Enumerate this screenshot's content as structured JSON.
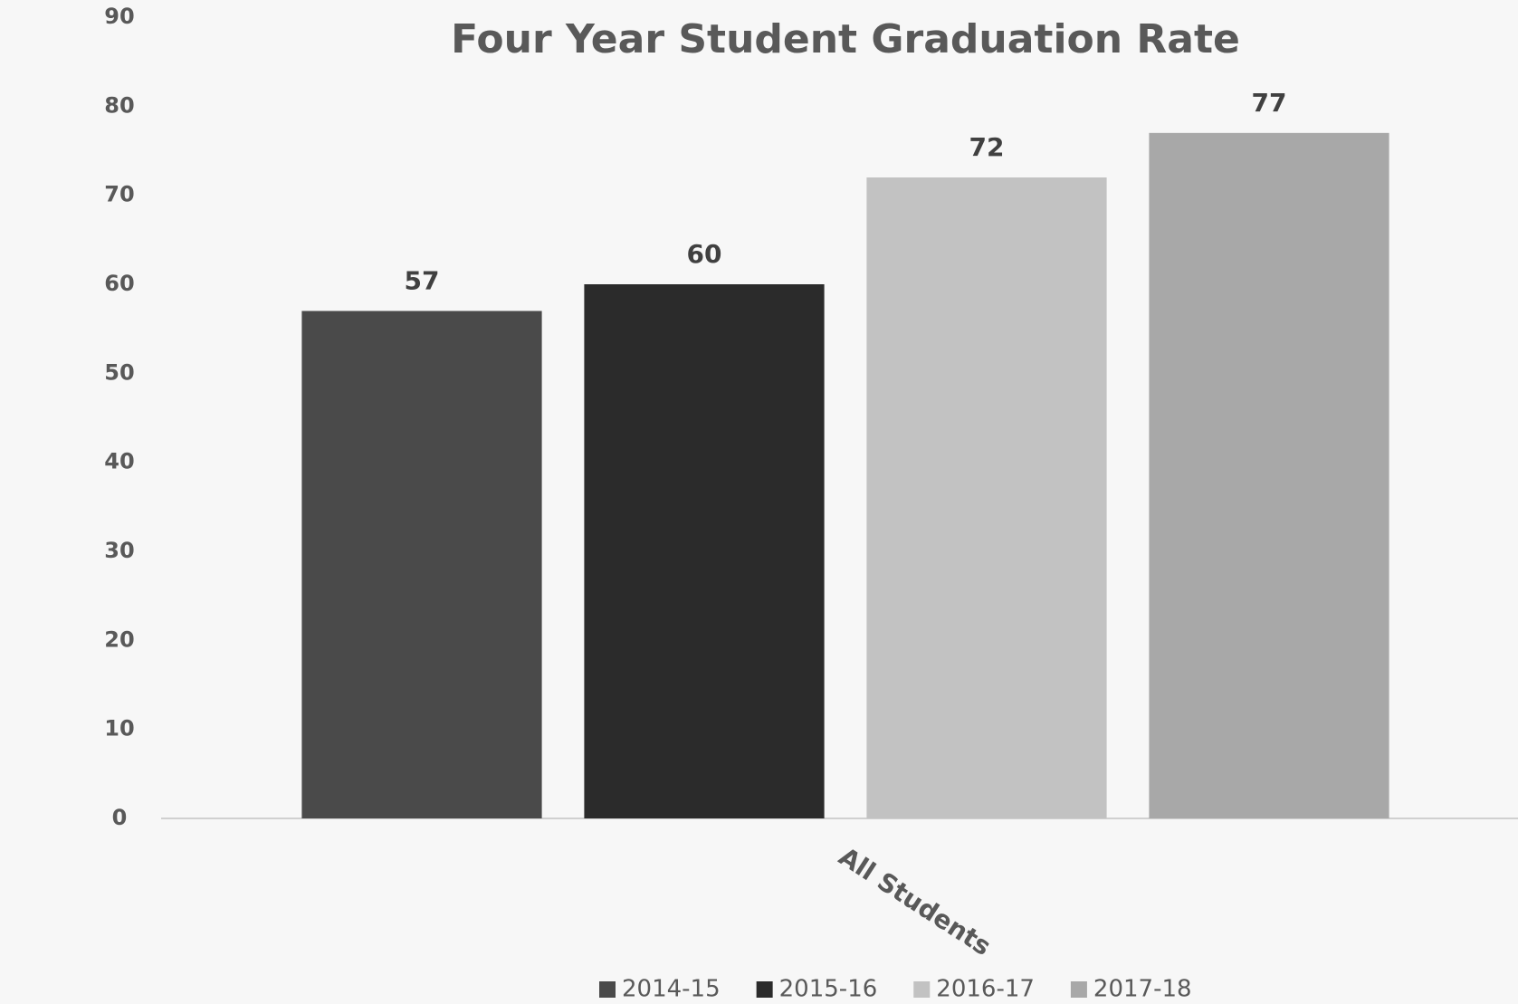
{
  "chart_data": {
    "type": "bar",
    "title": "Four Year Student Graduation Rate",
    "categories": [
      "All Students"
    ],
    "series": [
      {
        "name": "2014-15",
        "color": "#4a4a4a",
        "values": [
          57
        ]
      },
      {
        "name": "2015-16",
        "color": "#2b2b2b",
        "values": [
          60
        ]
      },
      {
        "name": "2016-17",
        "color": "#c2c2c2",
        "values": [
          72
        ]
      },
      {
        "name": "2017-18",
        "color": "#a8a8a8",
        "values": [
          77
        ]
      }
    ],
    "ylim": [
      0,
      90
    ],
    "yticks": [
      0,
      10,
      20,
      30,
      40,
      50,
      60,
      70,
      80,
      90
    ],
    "grid": false,
    "legend": "bottom"
  }
}
